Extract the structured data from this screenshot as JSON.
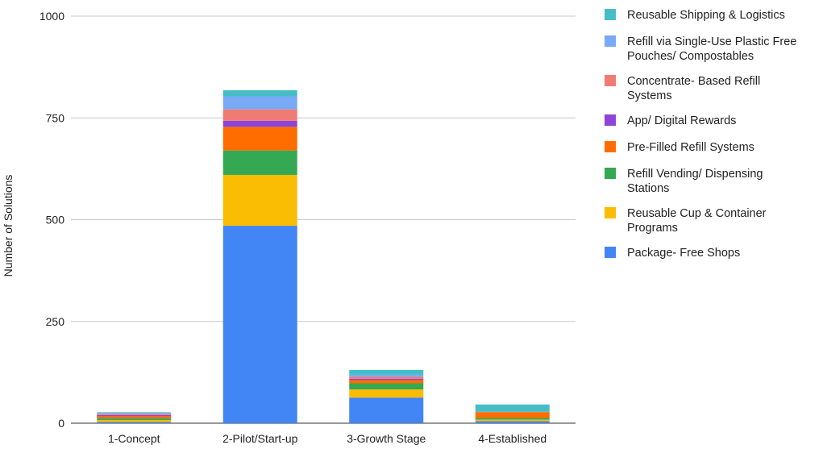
{
  "chart_data": {
    "type": "bar",
    "stacked": true,
    "title": "",
    "xlabel": "",
    "ylabel": "Number of Solutions",
    "ylim": [
      0,
      1000
    ],
    "yticks": [
      0,
      250,
      500,
      750,
      1000
    ],
    "grid": true,
    "legend_position": "right",
    "categories": [
      "1-Concept",
      "2-Pilot/Start-up",
      "3-Growth Stage",
      "4-Established"
    ],
    "series": [
      {
        "name": "Package- Free Shops",
        "color": "#4285f4",
        "values": [
          3,
          485,
          63,
          5
        ]
      },
      {
        "name": "Reusable Cup & Container Programs",
        "color": "#fbbc04",
        "values": [
          5,
          125,
          20,
          4
        ]
      },
      {
        "name": "Refill Vending/ Dispensing Stations",
        "color": "#34a853",
        "values": [
          4,
          60,
          15,
          4
        ]
      },
      {
        "name": "Pre-Filled Refill Systems",
        "color": "#ff6d01",
        "values": [
          5,
          58,
          8,
          14
        ]
      },
      {
        "name": "App/ Digital Rewards",
        "color": "#8e44d6",
        "values": [
          3,
          15,
          3,
          0
        ]
      },
      {
        "name": "Concentrate- Based Refill Systems",
        "color": "#f07b72",
        "values": [
          3,
          28,
          5,
          1
        ]
      },
      {
        "name": "Refill via Single-Use Plastic Free Pouches/ Compostables",
        "color": "#7aa9f7",
        "values": [
          2,
          32,
          5,
          0
        ]
      },
      {
        "name": "Reusable Shipping & Logistics",
        "color": "#46bdc6",
        "values": [
          2,
          15,
          12,
          18
        ]
      }
    ],
    "legend": [
      {
        "lines": [
          "Reusable Shipping & Logistics"
        ],
        "color": "#46bdc6"
      },
      {
        "lines": [
          "Refill via Single-Use Plastic Free",
          "Pouches/ Compostables"
        ],
        "color": "#7aa9f7"
      },
      {
        "lines": [
          "Concentrate- Based Refill",
          "Systems"
        ],
        "color": "#f07b72"
      },
      {
        "lines": [
          "App/ Digital Rewards"
        ],
        "color": "#8e44d6"
      },
      {
        "lines": [
          "Pre-Filled Refill Systems"
        ],
        "color": "#ff6d01"
      },
      {
        "lines": [
          "Refill Vending/ Dispensing",
          "Stations"
        ],
        "color": "#34a853"
      },
      {
        "lines": [
          "Reusable Cup & Container",
          "Programs"
        ],
        "color": "#fbbc04"
      },
      {
        "lines": [
          "Package- Free Shops"
        ],
        "color": "#4285f4"
      }
    ]
  }
}
